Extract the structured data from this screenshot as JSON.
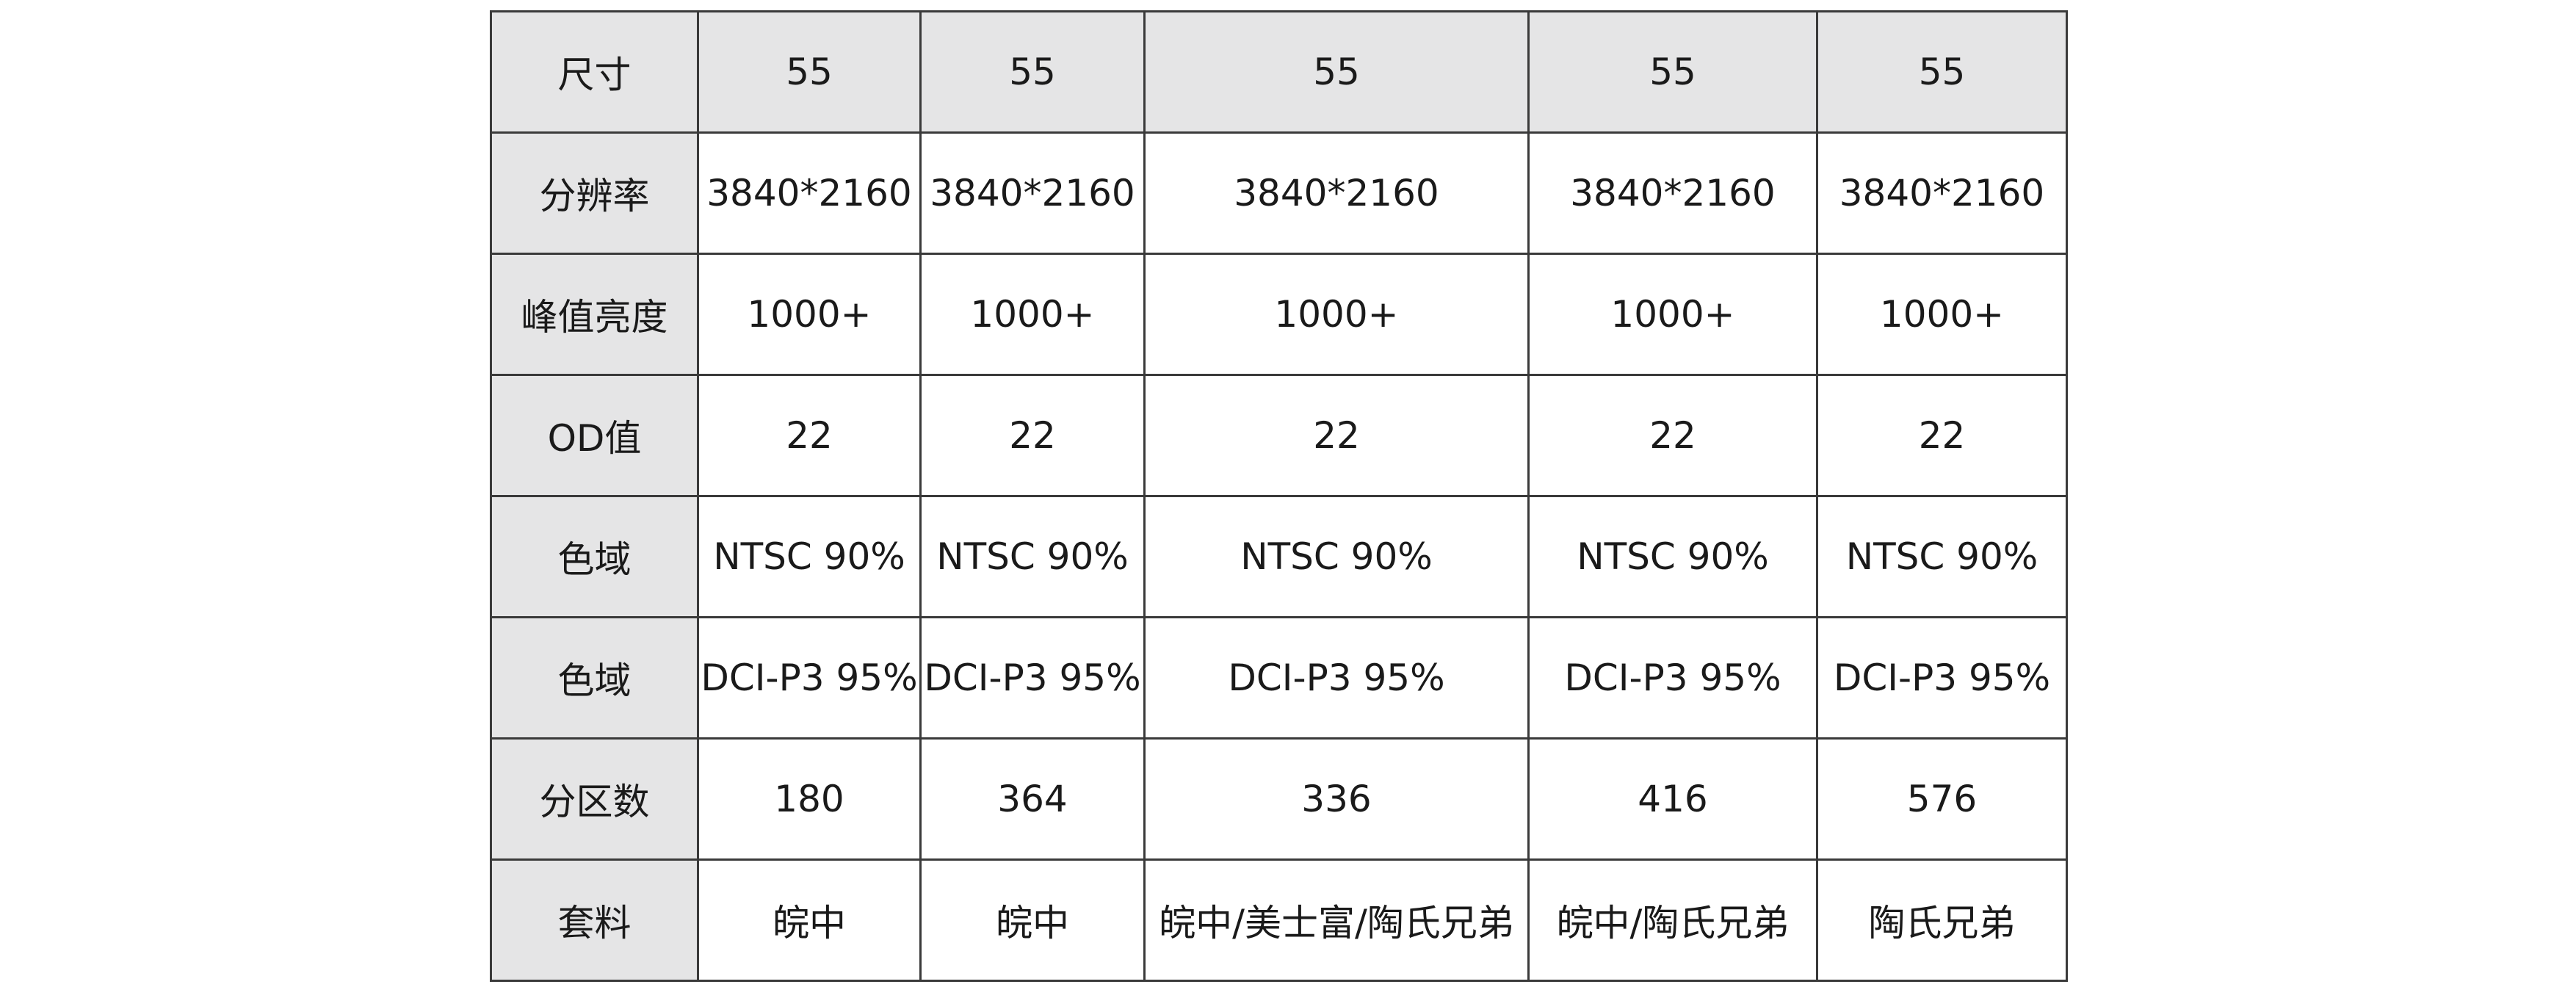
{
  "table": {
    "rows": [
      {
        "label": "尺寸",
        "cells": [
          "55",
          "55",
          "55",
          "55",
          "55"
        ]
      },
      {
        "label": "分辨率",
        "cells": [
          "3840*2160",
          "3840*2160",
          "3840*2160",
          "3840*2160",
          "3840*2160"
        ]
      },
      {
        "label": "峰值亮度",
        "cells": [
          "1000+",
          "1000+",
          "1000+",
          "1000+",
          "1000+"
        ]
      },
      {
        "label": "OD值",
        "cells": [
          "22",
          "22",
          "22",
          "22",
          "22"
        ]
      },
      {
        "label": "色域",
        "cells": [
          "NTSC 90%",
          "NTSC 90%",
          "NTSC 90%",
          "NTSC 90%",
          "NTSC 90%"
        ]
      },
      {
        "label": "色域",
        "cells": [
          "DCI-P3 95%",
          "DCI-P3 95%",
          "DCI-P3 95%",
          "DCI-P3 95%",
          "DCI-P3 95%"
        ]
      },
      {
        "label": "分区数",
        "cells": [
          "180",
          "364",
          "336",
          "416",
          "576"
        ]
      },
      {
        "label": "套料",
        "cells": [
          "皖中",
          "皖中",
          "皖中/美士富/陶氏兄弟",
          "皖中/陶氏兄弟",
          "陶氏兄弟"
        ]
      }
    ]
  }
}
